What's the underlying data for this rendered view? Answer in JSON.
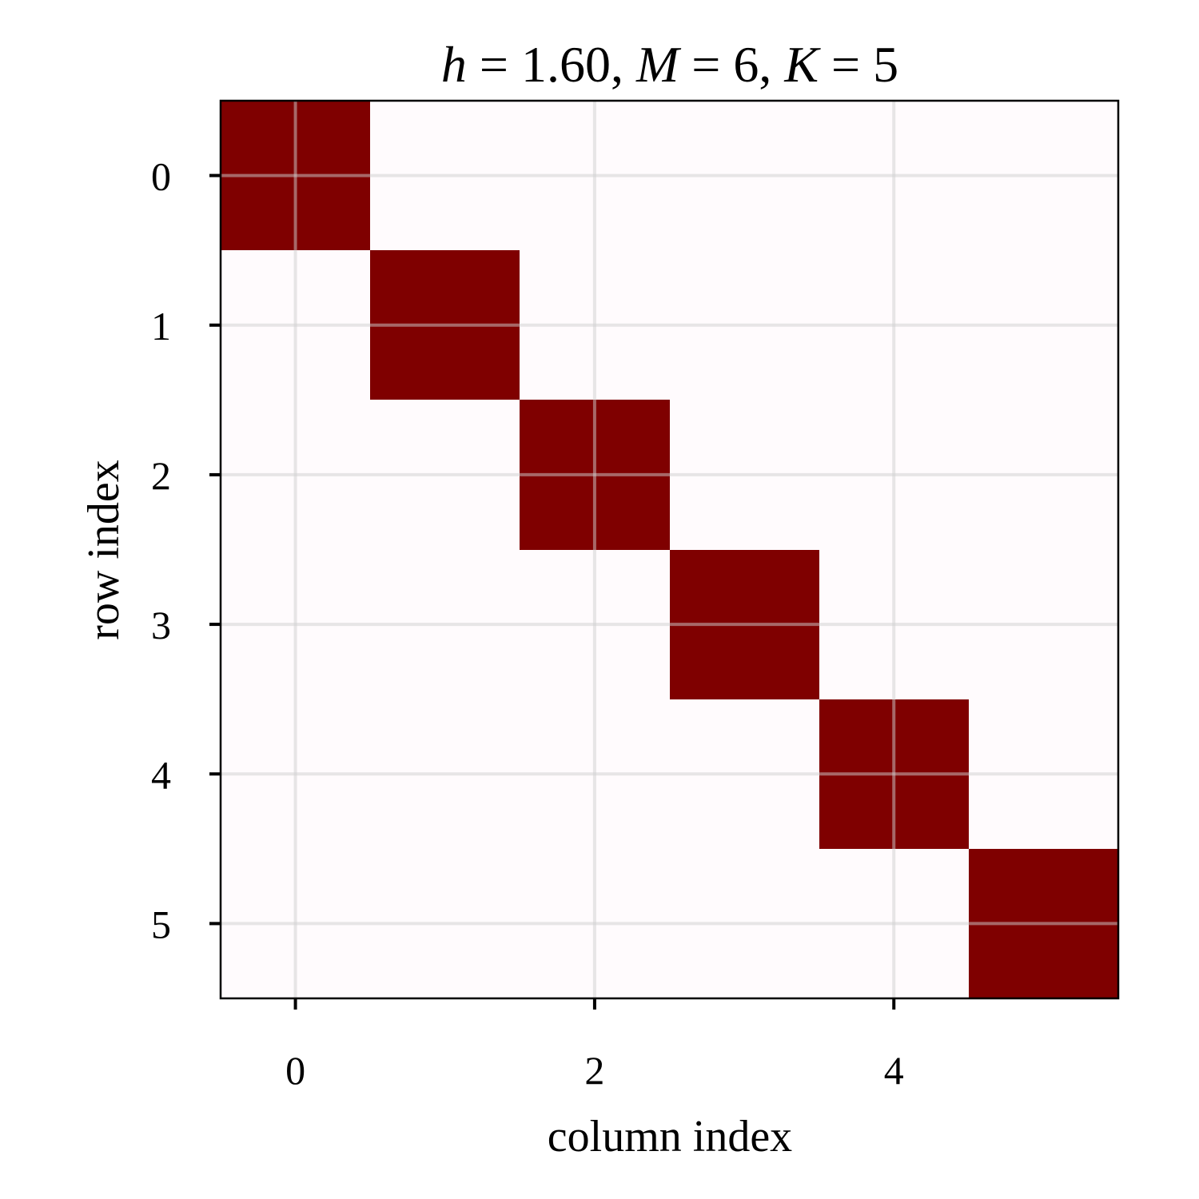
{
  "chart_data": {
    "type": "heatmap",
    "title": {
      "parts": [
        {
          "text": "h",
          "italic": true
        },
        {
          "text": " = 1.60, ",
          "italic": false
        },
        {
          "text": "M",
          "italic": true
        },
        {
          "text": " = 6, ",
          "italic": false
        },
        {
          "text": "K",
          "italic": true
        },
        {
          "text": " = 5",
          "italic": false
        }
      ]
    },
    "xlabel": "column index",
    "ylabel": "row index",
    "rows": 6,
    "cols": 6,
    "x_ticks": [
      0,
      2,
      4
    ],
    "y_ticks": [
      0,
      1,
      2,
      3,
      4,
      5
    ],
    "matrix": [
      [
        1,
        0,
        0,
        0,
        0,
        0
      ],
      [
        0,
        1,
        0,
        0,
        0,
        0
      ],
      [
        0,
        0,
        1,
        0,
        0,
        0
      ],
      [
        0,
        0,
        0,
        1,
        0,
        0
      ],
      [
        0,
        0,
        0,
        0,
        1,
        0
      ],
      [
        0,
        0,
        0,
        0,
        0,
        1
      ]
    ],
    "value_range": [
      0,
      1
    ],
    "grid": true,
    "colors": {
      "high": "#7f0000",
      "low": "#fffbfd",
      "grid": "#cfcfcf"
    }
  }
}
